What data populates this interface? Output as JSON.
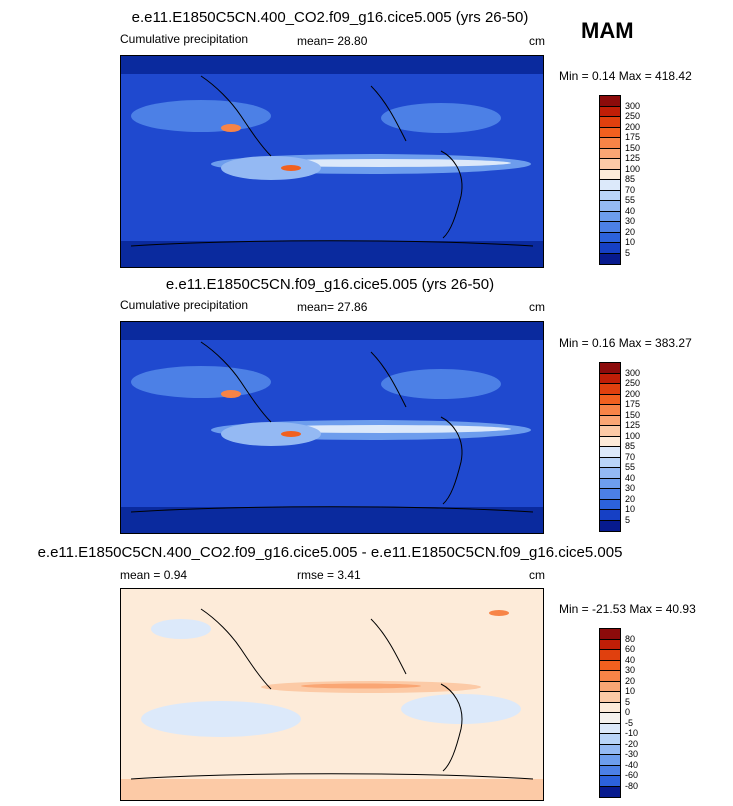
{
  "season": "MAM",
  "panels": [
    {
      "title": "e.e11.E1850C5CN.400_CO2.f09_g16.cice5.005 (yrs 26-50)",
      "left": "Cumulative precipitation",
      "center": "mean=  28.80",
      "units": "cm",
      "minmax": "Min =   0.14 Max = 418.42",
      "levels": [
        "300",
        "250",
        "200",
        "175",
        "150",
        "125",
        "100",
        "85",
        "70",
        "55",
        "40",
        "30",
        "20",
        "10",
        "5"
      ],
      "colors": [
        "#8c0b0b",
        "#c01e07",
        "#e0400e",
        "#f1601f",
        "#f78447",
        "#faa674",
        "#fccaa6",
        "#fdebd9",
        "#dce9fa",
        "#b9d4f8",
        "#94b9f3",
        "#6d9ded",
        "#4c80e6",
        "#2c62dc",
        "#1640c5",
        "#071a8e"
      ]
    },
    {
      "title": "e.e11.E1850C5CN.f09_g16.cice5.005 (yrs 26-50)",
      "left": "Cumulative precipitation",
      "center": "mean=  27.86",
      "units": "cm",
      "minmax": "Min =   0.16 Max = 383.27",
      "levels": [
        "300",
        "250",
        "200",
        "175",
        "150",
        "125",
        "100",
        "85",
        "70",
        "55",
        "40",
        "30",
        "20",
        "10",
        "5"
      ],
      "colors": [
        "#8c0b0b",
        "#c01e07",
        "#e0400e",
        "#f1601f",
        "#f78447",
        "#faa674",
        "#fccaa6",
        "#fdebd9",
        "#dce9fa",
        "#b9d4f8",
        "#94b9f3",
        "#6d9ded",
        "#4c80e6",
        "#2c62dc",
        "#1640c5",
        "#071a8e"
      ]
    },
    {
      "title": "e.e11.E1850C5CN.400_CO2.f09_g16.cice5.005 - e.e11.E1850C5CN.f09_g16.cice5.005",
      "left": "mean =   0.94",
      "center": "rmse =   3.41",
      "units": "cm",
      "minmax": "Min = -21.53 Max =  40.93",
      "levels": [
        "80",
        "60",
        "40",
        "30",
        "20",
        "10",
        "5",
        "0",
        "-5",
        "-10",
        "-20",
        "-30",
        "-40",
        "-60",
        "-80"
      ],
      "colors": [
        "#8c0b0b",
        "#c01e07",
        "#e0400e",
        "#f1601f",
        "#f78447",
        "#faa674",
        "#fccaa6",
        "#fdebd9",
        "#f5f2ee",
        "#dce9fa",
        "#b9d4f8",
        "#94b9f3",
        "#6d9ded",
        "#4c80e6",
        "#2c62dc",
        "#071a8e"
      ]
    }
  ],
  "chart_data": [
    {
      "type": "heatmap",
      "title": "e.e11.E1850C5CN.400_CO2.f09_g16.cice5.005 (yrs 26-50)",
      "variable": "Cumulative precipitation",
      "mean": 28.8,
      "units": "cm",
      "min": 0.14,
      "max": 418.42,
      "contour_levels": [
        5,
        10,
        20,
        30,
        40,
        55,
        70,
        85,
        100,
        125,
        150,
        175,
        200,
        250,
        300
      ]
    },
    {
      "type": "heatmap",
      "title": "e.e11.E1850C5CN.f09_g16.cice5.005 (yrs 26-50)",
      "variable": "Cumulative precipitation",
      "mean": 27.86,
      "units": "cm",
      "min": 0.16,
      "max": 383.27,
      "contour_levels": [
        5,
        10,
        20,
        30,
        40,
        55,
        70,
        85,
        100,
        125,
        150,
        175,
        200,
        250,
        300
      ]
    },
    {
      "type": "heatmap",
      "title": "e.e11.E1850C5CN.400_CO2.f09_g16.cice5.005 - e.e11.E1850C5CN.f09_g16.cice5.005",
      "mean": 0.94,
      "rmse": 3.41,
      "units": "cm",
      "min": -21.53,
      "max": 40.93,
      "contour_levels": [
        -80,
        -60,
        -40,
        -30,
        -20,
        -10,
        -5,
        0,
        5,
        10,
        20,
        30,
        40,
        60,
        80
      ]
    }
  ]
}
